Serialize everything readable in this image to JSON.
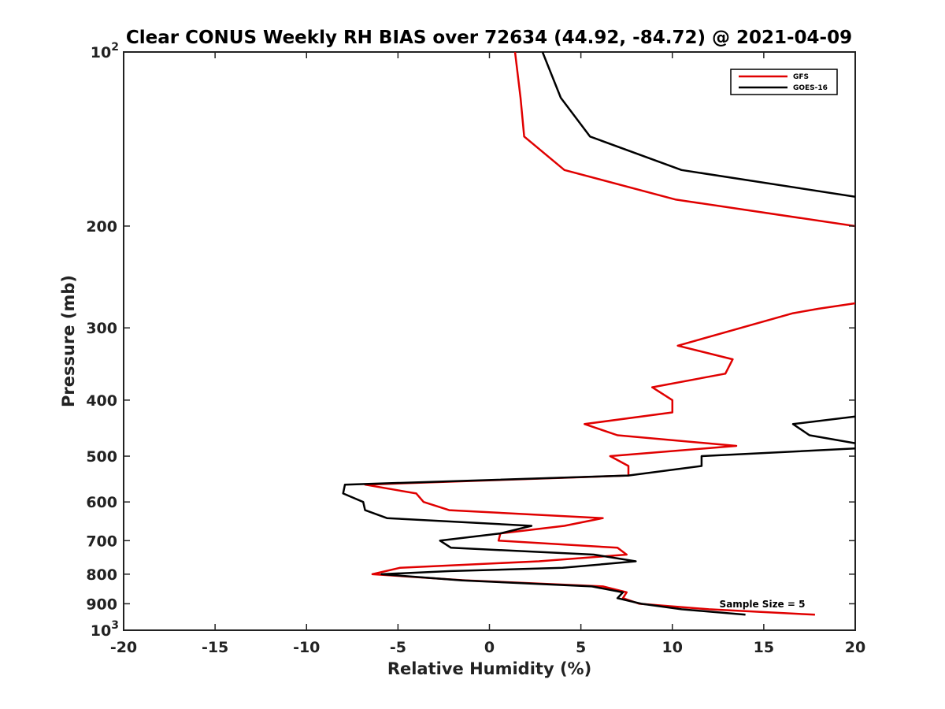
{
  "chart_data": {
    "type": "line",
    "title": "Clear CONUS Weekly RH BIAS over 72634 (44.92, -84.72) @ 2021-04-09",
    "xlabel": "Relative Humidity (%)",
    "ylabel": "Pressure (mb)",
    "xlim": [
      -20,
      20
    ],
    "ylim": [
      100,
      1000
    ],
    "yscale": "log",
    "y_direction": "reversed",
    "x_ticks": [
      -20,
      -15,
      -10,
      -5,
      0,
      5,
      10,
      15,
      20
    ],
    "y_ticks": [
      {
        "value": 100,
        "label": "10",
        "sup": "2"
      },
      {
        "value": 200,
        "label": "200"
      },
      {
        "value": 300,
        "label": "300"
      },
      {
        "value": 400,
        "label": "400"
      },
      {
        "value": 500,
        "label": "500"
      },
      {
        "value": 600,
        "label": "600"
      },
      {
        "value": 700,
        "label": "700"
      },
      {
        "value": 800,
        "label": "800"
      },
      {
        "value": 900,
        "label": "900"
      },
      {
        "value": 1000,
        "label": "10",
        "sup": "3"
      }
    ],
    "grid": false,
    "legend_position": "top-right",
    "annotation": "Sample Size = 5",
    "series": [
      {
        "name": "GFS",
        "color": "#e00000",
        "segments": [
          [
            [
              1.4,
              100
            ],
            [
              1.7,
              120
            ],
            [
              1.9,
              140
            ],
            [
              4.1,
              160
            ],
            [
              10.2,
              180
            ],
            [
              20.0,
              200
            ]
          ],
          [
            [
              20.0,
              272
            ],
            [
              18.0,
              278
            ],
            [
              16.6,
              283
            ],
            [
              10.3,
              322
            ],
            [
              13.3,
              340
            ],
            [
              12.9,
              360
            ],
            [
              8.9,
              380
            ],
            [
              10.0,
              400
            ],
            [
              10.0,
              420
            ],
            [
              5.2,
              440
            ],
            [
              7.0,
              460
            ],
            [
              13.5,
              480
            ],
            [
              6.6,
              500
            ],
            [
              7.6,
              520
            ],
            [
              7.6,
              540
            ],
            [
              -6.8,
              560
            ],
            [
              -4.0,
              580
            ],
            [
              -3.6,
              600
            ],
            [
              -2.2,
              620
            ],
            [
              6.2,
              640
            ],
            [
              4.1,
              660
            ],
            [
              0.6,
              680
            ],
            [
              0.5,
              700
            ],
            [
              7.0,
              720
            ],
            [
              7.5,
              740
            ],
            [
              2.7,
              760
            ],
            [
              -4.9,
              780
            ],
            [
              -6.4,
              800
            ],
            [
              -1.3,
              820
            ],
            [
              6.2,
              840
            ],
            [
              7.5,
              860
            ],
            [
              7.3,
              880
            ],
            [
              8.2,
              900
            ],
            [
              12.0,
              920
            ],
            [
              17.8,
              940
            ]
          ]
        ]
      },
      {
        "name": "GOES-16",
        "color": "#000000",
        "segments": [
          [
            [
              2.9,
              100
            ],
            [
              3.9,
              120
            ],
            [
              5.5,
              140
            ],
            [
              10.5,
              160
            ],
            [
              20.0,
              178
            ]
          ],
          [
            [
              20.0,
              427
            ],
            [
              16.6,
              440
            ],
            [
              17.5,
              460
            ],
            [
              20.0,
              475
            ]
          ],
          [
            [
              20.0,
              485
            ],
            [
              11.6,
              500
            ],
            [
              11.6,
              520
            ],
            [
              7.6,
              540
            ],
            [
              -7.9,
              560
            ],
            [
              -8.0,
              580
            ],
            [
              -6.9,
              600
            ],
            [
              -6.8,
              620
            ],
            [
              -5.6,
              640
            ],
            [
              2.3,
              660
            ],
            [
              0.6,
              680
            ],
            [
              -2.7,
              700
            ],
            [
              -2.1,
              720
            ],
            [
              5.7,
              740
            ],
            [
              8.0,
              760
            ],
            [
              4.0,
              780
            ],
            [
              -2.1,
              790
            ],
            [
              -5.9,
              800
            ],
            [
              -1.5,
              820
            ],
            [
              5.6,
              840
            ],
            [
              7.3,
              860
            ],
            [
              7.0,
              880
            ],
            [
              8.3,
              900
            ],
            [
              10.5,
              920
            ],
            [
              14.0,
              940
            ]
          ]
        ]
      }
    ]
  }
}
